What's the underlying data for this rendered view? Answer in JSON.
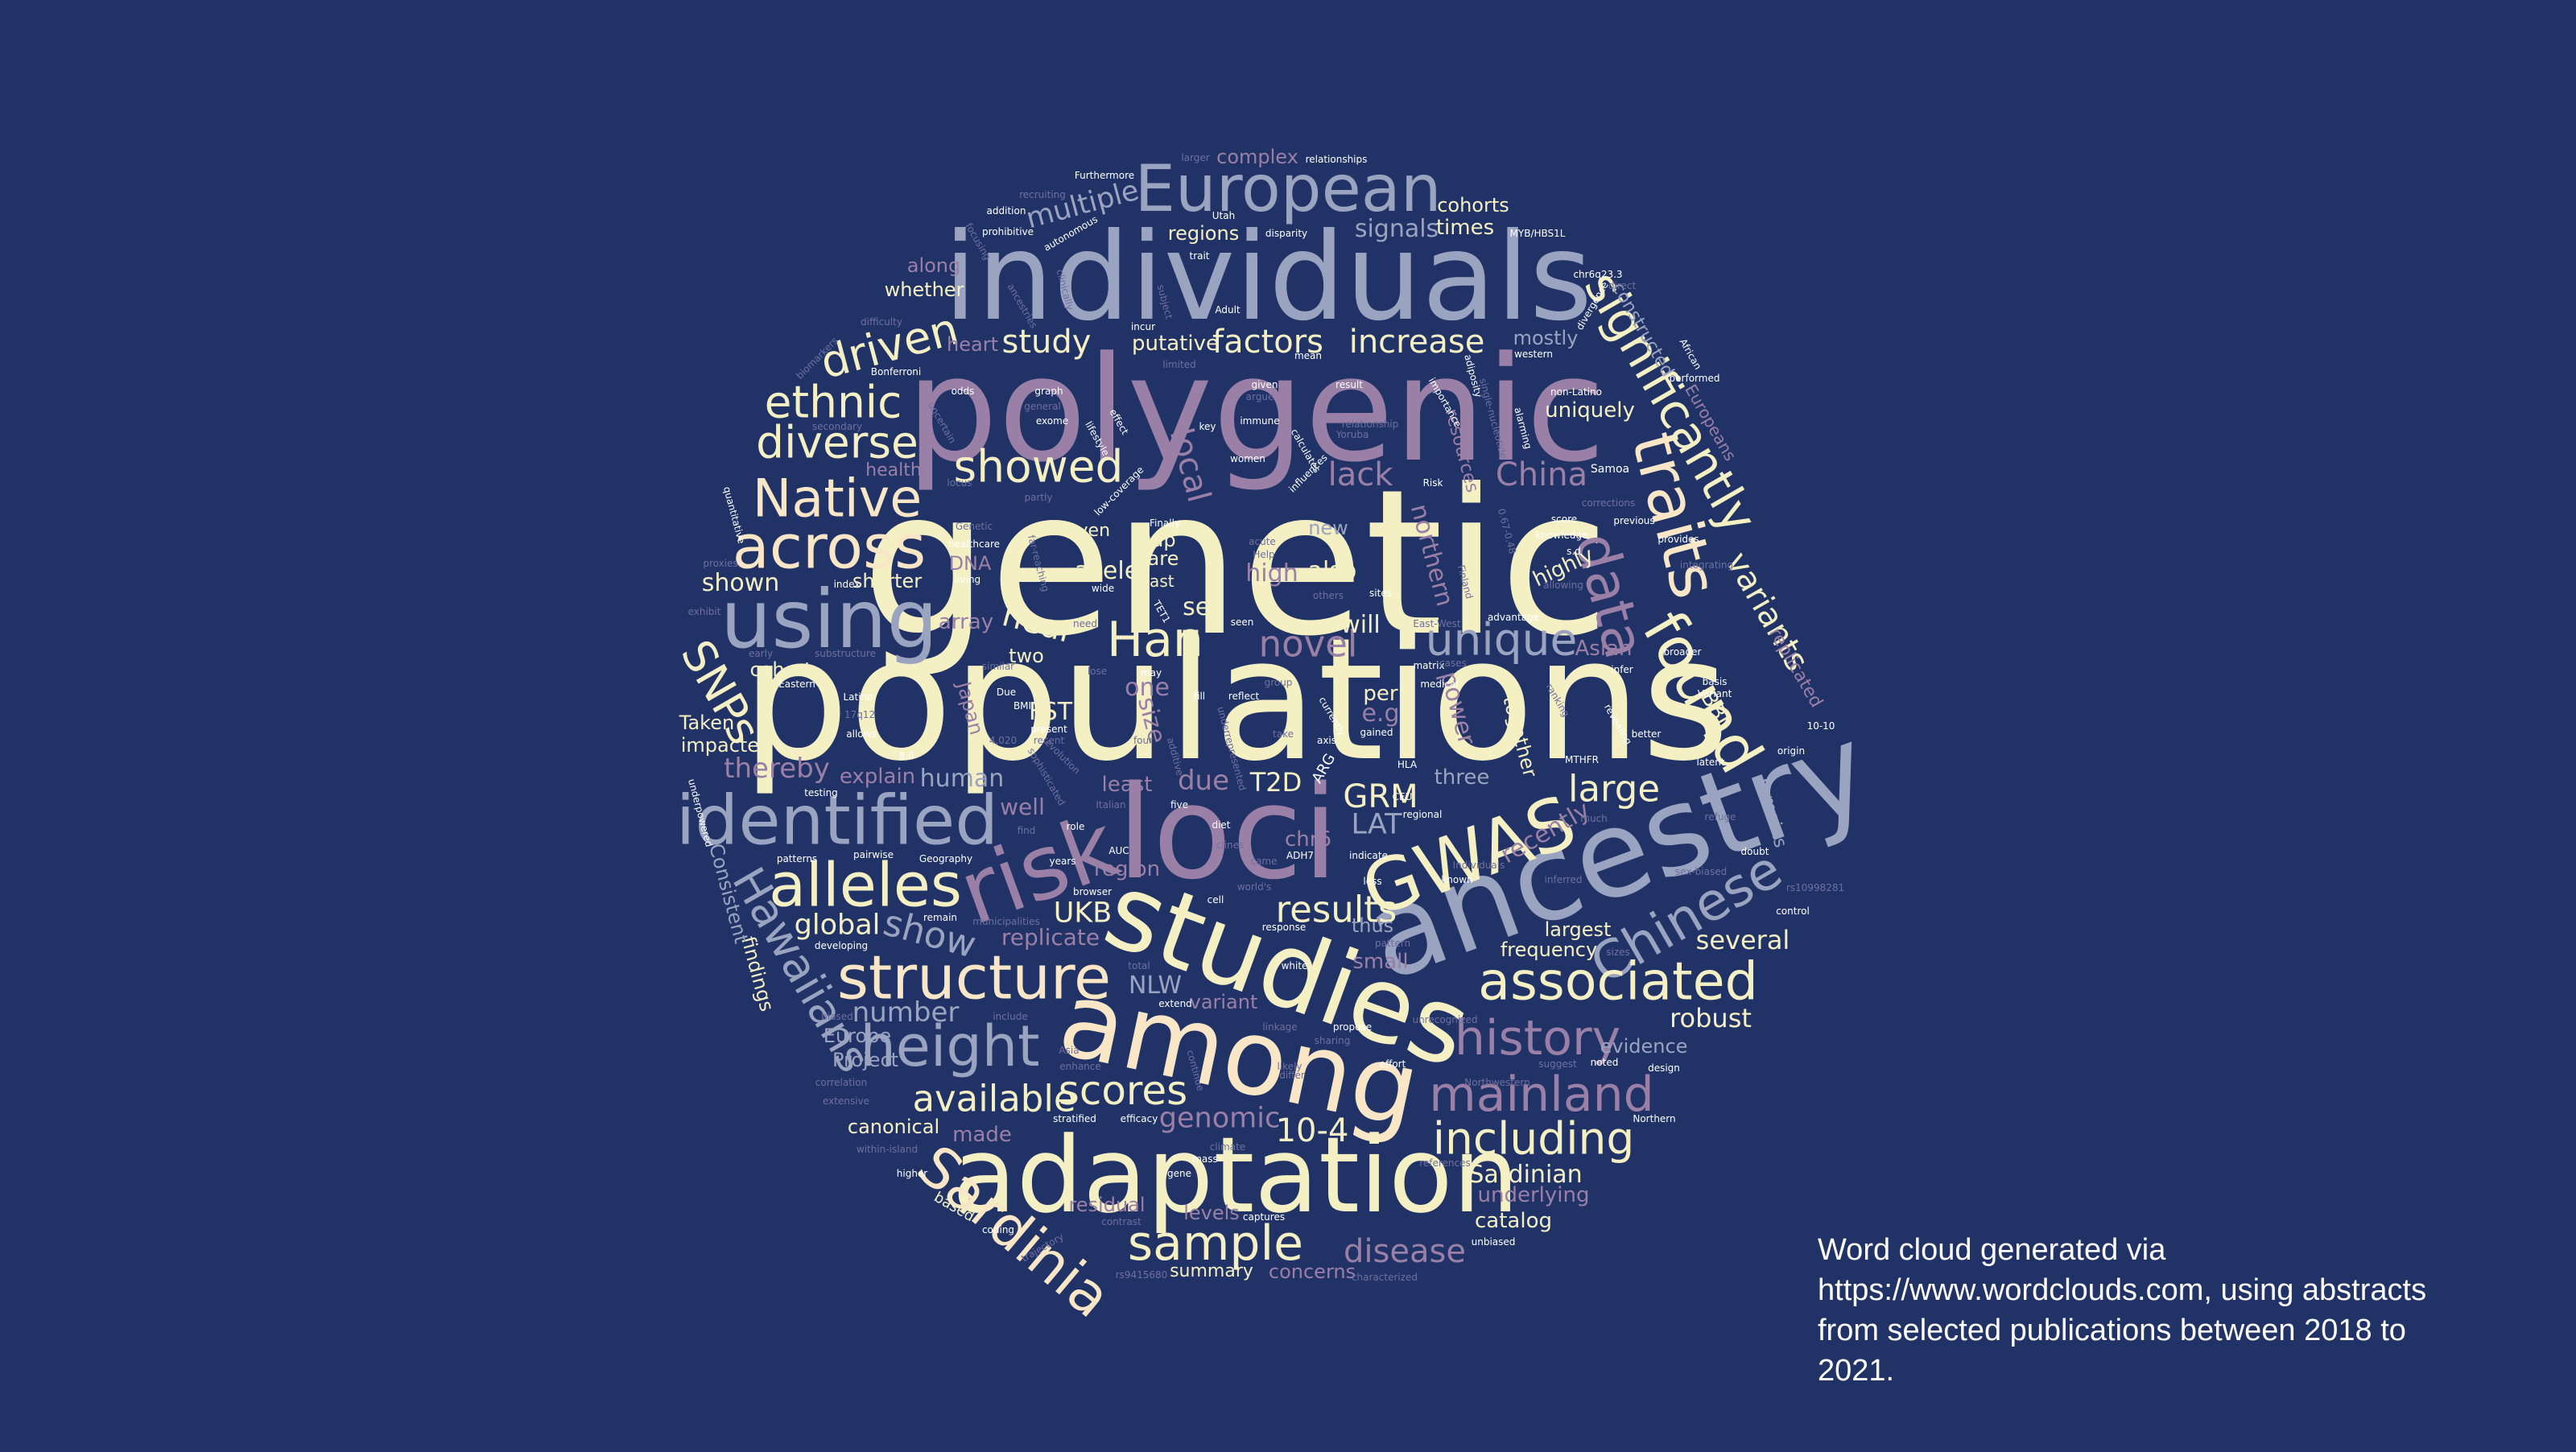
{
  "image": {
    "background_color": "#213366",
    "cloud_shape": "circle",
    "palette": [
      "#f4f0c4",
      "#9aa3bf",
      "#9a7fa6",
      "#f8e6c6",
      "#c9c4dc",
      "#6f6f9f",
      "#ffffff"
    ]
  },
  "caption": {
    "text": "Word cloud generated via https://www.wordclouds.com, using abstracts from selected publications between 2018 to 2021."
  },
  "words": [
    {
      "text": "genetic"
    },
    {
      "text": "populations"
    },
    {
      "text": "polygenic"
    },
    {
      "text": "individuals"
    },
    {
      "text": "ancestry"
    },
    {
      "text": "loci"
    },
    {
      "text": "studies"
    },
    {
      "text": "among"
    },
    {
      "text": "adaptation"
    },
    {
      "text": "risk"
    },
    {
      "text": "using"
    },
    {
      "text": "European"
    },
    {
      "text": "identified"
    },
    {
      "text": "GWAS"
    },
    {
      "text": "traits"
    },
    {
      "text": "found"
    },
    {
      "text": "significantly"
    },
    {
      "text": "alleles"
    },
    {
      "text": "structure"
    },
    {
      "text": "height"
    },
    {
      "text": "across"
    },
    {
      "text": "Native"
    },
    {
      "text": "Hawaiians"
    },
    {
      "text": "Sardinia"
    },
    {
      "text": "Chinese"
    },
    {
      "text": "data"
    },
    {
      "text": "associated"
    },
    {
      "text": "history"
    },
    {
      "text": "mainland"
    },
    {
      "text": "sample"
    },
    {
      "text": "including"
    },
    {
      "text": "scores"
    },
    {
      "text": "diverse"
    },
    {
      "text": "ethnic"
    },
    {
      "text": "driven"
    },
    {
      "text": "showed"
    },
    {
      "text": "Han"
    },
    {
      "text": "SNPs"
    },
    {
      "text": "unique"
    },
    {
      "text": "variants"
    },
    {
      "text": "available"
    },
    {
      "text": "results"
    },
    {
      "text": "novel"
    },
    {
      "text": "large"
    },
    {
      "text": "factors"
    },
    {
      "text": "increase"
    },
    {
      "text": "study"
    },
    {
      "text": "multiple"
    },
    {
      "text": "lack"
    },
    {
      "text": "China"
    },
    {
      "text": "show"
    },
    {
      "text": "global"
    },
    {
      "text": "UKB"
    },
    {
      "text": "replicate"
    },
    {
      "text": "GRM"
    },
    {
      "text": "LAT"
    },
    {
      "text": "T2D"
    },
    {
      "text": "10-4"
    },
    {
      "text": "genomic"
    },
    {
      "text": "disease"
    },
    {
      "text": "Sardinian"
    },
    {
      "text": "robust"
    },
    {
      "text": "several"
    },
    {
      "text": "evidence"
    },
    {
      "text": "frequency"
    },
    {
      "text": "largest"
    },
    {
      "text": "underlying"
    },
    {
      "text": "catalog"
    },
    {
      "text": "levels"
    },
    {
      "text": "summary"
    },
    {
      "text": "concerns"
    },
    {
      "text": "residual"
    },
    {
      "text": "canonical"
    },
    {
      "text": "made"
    },
    {
      "text": "number"
    },
    {
      "text": "Europe"
    },
    {
      "text": "Project"
    },
    {
      "text": "findings"
    },
    {
      "text": "Consistent"
    },
    {
      "text": "thereby"
    },
    {
      "text": "impacted"
    },
    {
      "text": "Taken"
    },
    {
      "text": "cohort"
    },
    {
      "text": "shown"
    },
    {
      "text": "shorter"
    },
    {
      "text": "explain"
    },
    {
      "text": "human"
    },
    {
      "text": "due"
    },
    {
      "text": "least"
    },
    {
      "text": "near"
    },
    {
      "text": "two"
    },
    {
      "text": "allele"
    },
    {
      "text": "also"
    },
    {
      "text": "will"
    },
    {
      "text": "high"
    },
    {
      "text": "set"
    },
    {
      "text": "rare"
    },
    {
      "text": "gap"
    },
    {
      "text": "even"
    },
    {
      "text": "new"
    },
    {
      "text": "northern"
    },
    {
      "text": "highly"
    },
    {
      "text": "uniquely"
    },
    {
      "text": "mostly"
    },
    {
      "text": "constructed"
    },
    {
      "text": "Europeans"
    },
    {
      "text": "replicated"
    },
    {
      "text": "BBJ"
    },
    {
      "text": "remains"
    },
    {
      "text": "Asian"
    },
    {
      "text": "together"
    },
    {
      "text": "power"
    },
    {
      "text": "per"
    },
    {
      "text": "e.g"
    },
    {
      "text": "three"
    },
    {
      "text": "recently"
    },
    {
      "text": "chr6"
    },
    {
      "text": "region"
    },
    {
      "text": "NLW"
    },
    {
      "text": "variant"
    },
    {
      "text": "small"
    },
    {
      "text": "thus"
    },
    {
      "text": "cohorts"
    },
    {
      "text": "times"
    },
    {
      "text": "signals"
    },
    {
      "text": "regions"
    },
    {
      "text": "complex"
    },
    {
      "text": "whether"
    },
    {
      "text": "along"
    },
    {
      "text": "heart"
    },
    {
      "text": "putative"
    },
    {
      "text": "health"
    },
    {
      "text": "DNA"
    },
    {
      "text": "array"
    },
    {
      "text": "Japan"
    },
    {
      "text": "FST"
    },
    {
      "text": "one"
    },
    {
      "text": "size"
    },
    {
      "text": "well"
    },
    {
      "text": "resources"
    },
    {
      "text": "local"
    },
    {
      "text": "relationships"
    },
    {
      "text": "Furthermore"
    },
    {
      "text": "larger"
    },
    {
      "text": "recruiting"
    },
    {
      "text": "addition"
    },
    {
      "text": "prohibitive"
    },
    {
      "text": "autonomous"
    },
    {
      "text": "Utah"
    },
    {
      "text": "disparity"
    },
    {
      "text": "MYB/HBS1L"
    },
    {
      "text": "chr6q23.3"
    },
    {
      "text": "trait"
    },
    {
      "text": "Adult"
    },
    {
      "text": "western"
    },
    {
      "text": "African"
    },
    {
      "text": "performed"
    },
    {
      "text": "non-Latino"
    },
    {
      "text": "Bonferroni"
    },
    {
      "text": "difficulty"
    },
    {
      "text": "odds"
    },
    {
      "text": "graph"
    },
    {
      "text": "exome"
    },
    {
      "text": "given"
    },
    {
      "text": "argue"
    },
    {
      "text": "result"
    },
    {
      "text": "key"
    },
    {
      "text": "women"
    },
    {
      "text": "immune"
    },
    {
      "text": "Risk"
    },
    {
      "text": "Samoa"
    },
    {
      "text": "score"
    },
    {
      "text": "knowledge"
    },
    {
      "text": "Finally"
    },
    {
      "text": "Genetic"
    },
    {
      "text": "healthcare"
    },
    {
      "text": "living"
    },
    {
      "text": "index"
    },
    {
      "text": "exhibit"
    },
    {
      "text": "substructure"
    },
    {
      "text": "early"
    },
    {
      "text": "Eastern"
    },
    {
      "text": "Latino"
    },
    {
      "text": "17q12"
    },
    {
      "text": "allows"
    },
    {
      "text": "8.6"
    },
    {
      "text": "testing"
    },
    {
      "text": "underpowered"
    },
    {
      "text": "patterns"
    },
    {
      "text": "pairwise"
    },
    {
      "text": "Geography"
    },
    {
      "text": "remain"
    },
    {
      "text": "municipalities"
    },
    {
      "text": "developing"
    },
    {
      "text": "biased"
    },
    {
      "text": "include"
    },
    {
      "text": "correlation"
    },
    {
      "text": "extensive"
    },
    {
      "text": "within-island"
    },
    {
      "text": "higher"
    },
    {
      "text": "based"
    },
    {
      "text": "coding"
    },
    {
      "text": "trajectory"
    },
    {
      "text": "contrast"
    },
    {
      "text": "rs9415680"
    },
    {
      "text": "characterized"
    },
    {
      "text": "unbiased"
    },
    {
      "text": "Northern"
    },
    {
      "text": "design"
    },
    {
      "text": "noted"
    },
    {
      "text": "suggest"
    },
    {
      "text": "Northwestern"
    },
    {
      "text": "effort"
    },
    {
      "text": "propose"
    },
    {
      "text": "sharing"
    },
    {
      "text": "linkage"
    },
    {
      "text": "extend"
    },
    {
      "text": "total"
    },
    {
      "text": "white"
    },
    {
      "text": "response"
    },
    {
      "text": "cell"
    },
    {
      "text": "world's"
    },
    {
      "text": "browser"
    },
    {
      "text": "years"
    },
    {
      "text": "AUC"
    },
    {
      "text": "find"
    },
    {
      "text": "role"
    },
    {
      "text": "five"
    },
    {
      "text": "diet"
    },
    {
      "text": "ADH7"
    },
    {
      "text": "indicate"
    },
    {
      "text": "regional"
    },
    {
      "text": "CEU"
    },
    {
      "text": "known"
    },
    {
      "text": "Individuals"
    },
    {
      "text": "inferred"
    },
    {
      "text": "sizes"
    },
    {
      "text": "sex-biased"
    },
    {
      "text": "control"
    },
    {
      "text": "rs10998281"
    },
    {
      "text": "doubt"
    },
    {
      "text": "refuge"
    },
    {
      "text": "latent"
    },
    {
      "text": "origin"
    },
    {
      "text": "10-10"
    },
    {
      "text": "Variant"
    },
    {
      "text": "better"
    },
    {
      "text": "MTHFR"
    },
    {
      "text": "much"
    },
    {
      "text": "infer"
    },
    {
      "text": "broader"
    },
    {
      "text": "basis"
    },
    {
      "text": "advantage"
    },
    {
      "text": "East-West"
    },
    {
      "text": "gained"
    },
    {
      "text": "axis"
    },
    {
      "text": "reflect"
    },
    {
      "text": "group"
    },
    {
      "text": "East"
    },
    {
      "text": "wide"
    },
    {
      "text": "seen"
    },
    {
      "text": "need"
    },
    {
      "text": "may"
    },
    {
      "text": "lose"
    },
    {
      "text": "similar"
    },
    {
      "text": "Due"
    },
    {
      "text": "present"
    },
    {
      "text": "recent"
    },
    {
      "text": "BMI"
    },
    {
      "text": "ARG"
    },
    {
      "text": "matrix"
    },
    {
      "text": "cases"
    },
    {
      "text": "medical"
    },
    {
      "text": "corrections"
    },
    {
      "text": "integrating"
    },
    {
      "text": "provides"
    },
    {
      "text": "previous"
    },
    {
      "text": "s.d"
    },
    {
      "text": "allowing"
    },
    {
      "text": "revealing"
    },
    {
      "text": "ranking"
    },
    {
      "text": "currently"
    },
    {
      "text": "take"
    },
    {
      "text": "acute"
    },
    {
      "text": "Help"
    },
    {
      "text": "incur"
    },
    {
      "text": "subject"
    },
    {
      "text": "limited"
    },
    {
      "text": "mean"
    },
    {
      "text": "lifestyle"
    },
    {
      "text": "relationship"
    },
    {
      "text": "calculates"
    },
    {
      "text": "influences"
    },
    {
      "text": "focusing"
    },
    {
      "text": "clinically"
    },
    {
      "text": "ancestries"
    },
    {
      "text": "biomarkers"
    },
    {
      "text": "secondary"
    },
    {
      "text": "general"
    },
    {
      "text": "uncertain"
    },
    {
      "text": "effect"
    },
    {
      "text": "importance"
    },
    {
      "text": "adiposity"
    },
    {
      "text": "alarming"
    },
    {
      "text": "single-nucleotide"
    },
    {
      "text": "divergence"
    },
    {
      "text": "direct"
    },
    {
      "text": "0.67-0.48"
    },
    {
      "text": "partly"
    },
    {
      "text": "locus"
    },
    {
      "text": "quantitative"
    },
    {
      "text": "proxies"
    },
    {
      "text": "far-reaching"
    },
    {
      "text": "low-coverage"
    },
    {
      "text": "Finland"
    },
    {
      "text": "unrecognized"
    },
    {
      "text": "references"
    },
    {
      "text": "captures"
    },
    {
      "text": "climate"
    },
    {
      "text": "efficacy"
    },
    {
      "text": "stratified"
    },
    {
      "text": "mass"
    },
    {
      "text": "gene"
    },
    {
      "text": "enhance"
    },
    {
      "text": "Asia"
    },
    {
      "text": "differ"
    },
    {
      "text": "likely"
    },
    {
      "text": "continue"
    },
    {
      "text": "pattern"
    },
    {
      "text": "less"
    },
    {
      "text": "came"
    },
    {
      "text": "clines"
    },
    {
      "text": "sophisticated"
    },
    {
      "text": "additive"
    },
    {
      "text": "TET1"
    },
    {
      "text": "4,020"
    },
    {
      "text": "four"
    },
    {
      "text": "fill"
    },
    {
      "text": "underrepresented"
    },
    {
      "text": "evolution"
    },
    {
      "text": "Italian"
    },
    {
      "text": "others"
    },
    {
      "text": "sites"
    },
    {
      "text": "HLA"
    },
    {
      "text": "Yoruba"
    }
  ]
}
